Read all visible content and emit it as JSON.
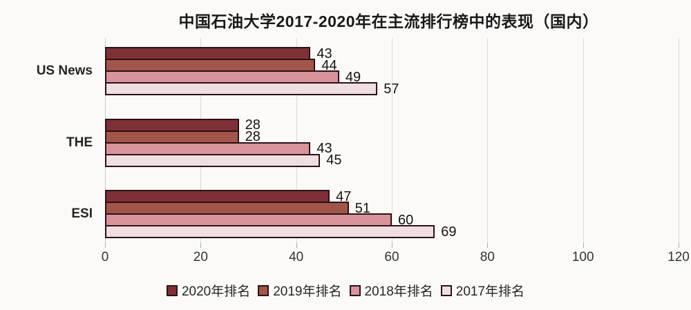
{
  "chart_data": {
    "type": "bar",
    "orientation": "horizontal",
    "title": "中国石油大学2017-2020年在主流排行榜中的表现（国内）",
    "categories": [
      "US News",
      "THE",
      "ESI"
    ],
    "series": [
      {
        "name": "2020年排名",
        "color": "#7d3036",
        "values": [
          43,
          28,
          47
        ]
      },
      {
        "name": "2019年排名",
        "color": "#a2564a",
        "values": [
          44,
          28,
          51
        ]
      },
      {
        "name": "2018年排名",
        "color": "#d9949b",
        "values": [
          49,
          43,
          60
        ]
      },
      {
        "name": "2017年排名",
        "color": "#f0dee0",
        "values": [
          57,
          45,
          69
        ]
      }
    ],
    "xlim": [
      0,
      120
    ],
    "xticks": [
      0,
      20,
      40,
      60,
      80,
      100,
      120
    ],
    "grid": true,
    "legend_position": "bottom",
    "bar_border_color": "#2a1216",
    "gridline_color": "#dadada"
  }
}
